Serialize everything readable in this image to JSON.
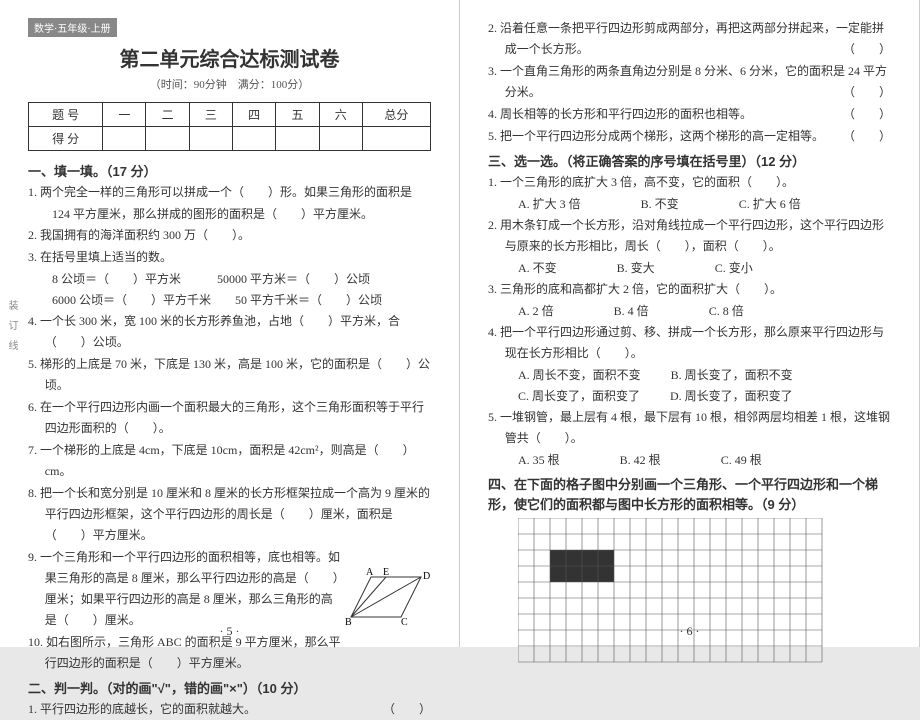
{
  "badge": "数学·五年级·上册",
  "title": "第二单元综合达标测试卷",
  "subtitle": "（时间：90分钟　满分：100分）",
  "score_headers": [
    "题 号",
    "一",
    "二",
    "三",
    "四",
    "五",
    "六",
    "总分"
  ],
  "score_row": "得 分",
  "sections": {
    "s1": "一、填一填。（17 分）",
    "s2": "二、判一判。（对的画\"√\"，错的画\"×\"）（10 分）",
    "s3": "三、选一选。（将正确答案的序号填在括号里）（12 分）",
    "s4": "四、在下面的格子图中分别画一个三角形、一个平行四边形和一个梯形，使它们的面积都与图中长方形的面积相等。（9 分）"
  },
  "q": {
    "q1_1": "1. 两个完全一样的三角形可以拼成一个（　　）形。如果三角形的面积是",
    "q1_1b": "124 平方厘米，那么拼成的图形的面积是（　　）平方厘米。",
    "q1_2": "2. 我国拥有的海洋面积约 300 万（　　）。",
    "q1_3": "3. 在括号里填上适当的数。",
    "q1_3a": "8 公顷＝（　　）平方米　　　50000 平方米＝（　　）公顷",
    "q1_3b": "6000 公顷＝（　　）平方千米　　50 平方千米＝（　　）公顷",
    "q1_4": "4. 一个长 300 米，宽 100 米的长方形养鱼池，占地（　　）平方米，合（　　）公顷。",
    "q1_5": "5. 梯形的上底是 70 米，下底是 130 米，高是 100 米，它的面积是（　　）公顷。",
    "q1_6": "6. 在一个平行四边形内画一个面积最大的三角形，这个三角形面积等于平行四边形面积的（　　）。",
    "q1_7": "7. 一个梯形的上底是 4cm，下底是 10cm，面积是 42cm²，则高是（　　）cm。",
    "q1_8": "8. 把一个长和宽分别是 10 厘米和 8 厘米的长方形框架拉成一个高为 9 厘米的平行四边形框架，这个平行四边形的周长是（　　）厘米，面积是（　　）平方厘米。",
    "q1_9": "9. 一个三角形和一个平行四边形的面积相等，底也相等。如果三角形的高是 8 厘米，那么平行四边形的高是（　　）厘米；如果平行四边形的高是 8 厘米，那么三角形的高是（　　）厘米。",
    "q1_10": "10. 如右图所示，三角形 ABC 的面积是 9 平方厘米，那么平行四边形的面积是（　　）平方厘米。",
    "q2_1": "1. 平行四边形的底越长，它的面积就越大。",
    "q2_2": "2. 沿着任意一条把平行四边形剪成两部分，再把这两部分拼起来，一定能拼成一个长方形。",
    "q2_3": "3. 一个直角三角形的两条直角边分别是 8 分米、6 分米，它的面积是 24 平方分米。",
    "q2_4": "4. 周长相等的长方形和平行四边形的面积也相等。",
    "q2_5": "5. 把一个平行四边形分成两个梯形，这两个梯形的高一定相等。",
    "q3_1": "1. 一个三角形的底扩大 3 倍，高不变，它的面积（　　）。",
    "q3_1a": "A. 扩大 3 倍",
    "q3_1b": "B. 不变",
    "q3_1c": "C. 扩大 6 倍",
    "q3_2": "2. 用木条钉成一个长方形，沿对角线拉成一个平行四边形，这个平行四边形与原来的长方形相比，周长（　　），面积（　　）。",
    "q3_2a": "A. 不变",
    "q3_2b": "B. 变大",
    "q3_2c": "C. 变小",
    "q3_3": "3. 三角形的底和高都扩大 2 倍，它的面积扩大（　　）。",
    "q3_3a": "A. 2 倍",
    "q3_3b": "B. 4 倍",
    "q3_3c": "C. 8 倍",
    "q3_4": "4. 把一个平行四边形通过剪、移、拼成一个长方形，那么原来平行四边形与现在长方形相比（　　）。",
    "q3_4a": "A. 周长不变，面积不变",
    "q3_4b": "B. 周长变了，面积不变",
    "q3_4c": "C. 周长变了，面积变了",
    "q3_4d": "D. 周长变了，面积变了",
    "q3_5": "5. 一堆钢管，最上层有 4 根，最下层有 10 根，相邻两层均相差 1 根，这堆钢管共（　　）。",
    "q3_5a": "A. 35 根",
    "q3_5b": "B. 42 根",
    "q3_5c": "C. 49 根"
  },
  "paren_mark": "（　　）",
  "footer_left": "· 5 ·",
  "footer_right": "· 6 ·",
  "fig_labels": {
    "A": "A",
    "B": "B",
    "C": "C",
    "D": "D",
    "E": "E"
  },
  "grid": {
    "cols": 19,
    "rows": 9,
    "cell": 16
  },
  "colors": {
    "text": "#333333",
    "border": "#333333",
    "grid": "#555555",
    "bg": "#ffffff"
  }
}
